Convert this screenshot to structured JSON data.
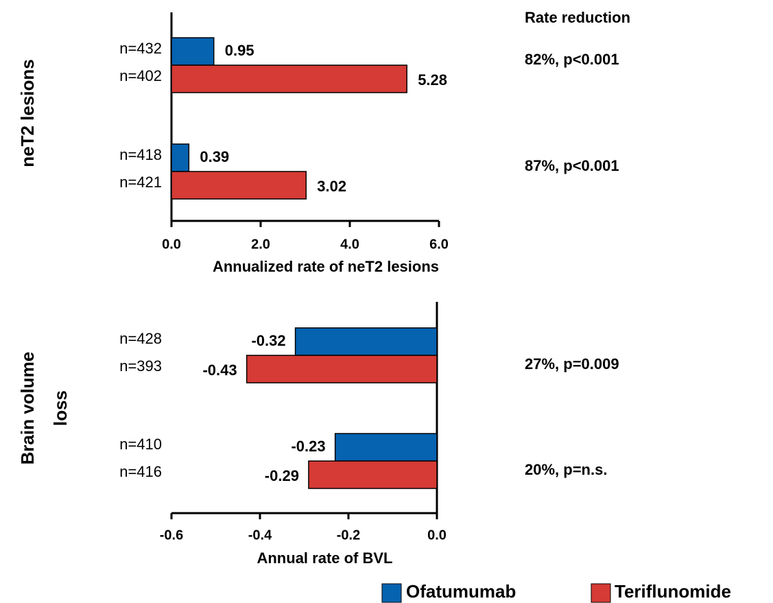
{
  "header": "Rate reduction",
  "chart_data": [
    {
      "type": "hbar",
      "ylabel": "neT2 lesions",
      "xlabel": "Annualized rate of neT2 lesions",
      "xlim": [
        0,
        6
      ],
      "xticks": [
        {
          "value": 0,
          "label": "0.0"
        },
        {
          "value": 2,
          "label": "2.0"
        },
        {
          "value": 4,
          "label": "4.0"
        },
        {
          "value": 6,
          "label": "6.0"
        }
      ],
      "series": [
        {
          "name": "Ofatumumab",
          "color": "#0563b0",
          "values": [
            0.95,
            0.39
          ],
          "n_labels": [
            "n=432",
            "n=418"
          ]
        },
        {
          "name": "Teriflunomide",
          "color": "#d63b35",
          "values": [
            5.28,
            3.02
          ],
          "n_labels": [
            "n=402",
            "n=421"
          ]
        }
      ],
      "annotations": [
        "82%, p<0.001",
        "87%, p<0.001"
      ]
    },
    {
      "type": "hbar",
      "ylabel": "Brain volume loss",
      "xlabel": "Annual rate of BVL",
      "xlim": [
        -0.6,
        0
      ],
      "xticks": [
        -0.6,
        -0.4,
        -0.2,
        {
          "value": 0,
          "label": "0.0"
        }
      ],
      "series": [
        {
          "color": "#0563b0",
          "values": [
            -0.32,
            -0.23
          ],
          "n_labels": [
            "n=428",
            "n=410"
          ]
        },
        {
          "color": "#d63b35",
          "values": [
            -0.43,
            -0.29
          ],
          "n_labels": [
            "n=393",
            "n=416"
          ]
        }
      ],
      "annotations": [
        "27%, p=0.009",
        "20%, p=n.s."
      ]
    }
  ]
}
